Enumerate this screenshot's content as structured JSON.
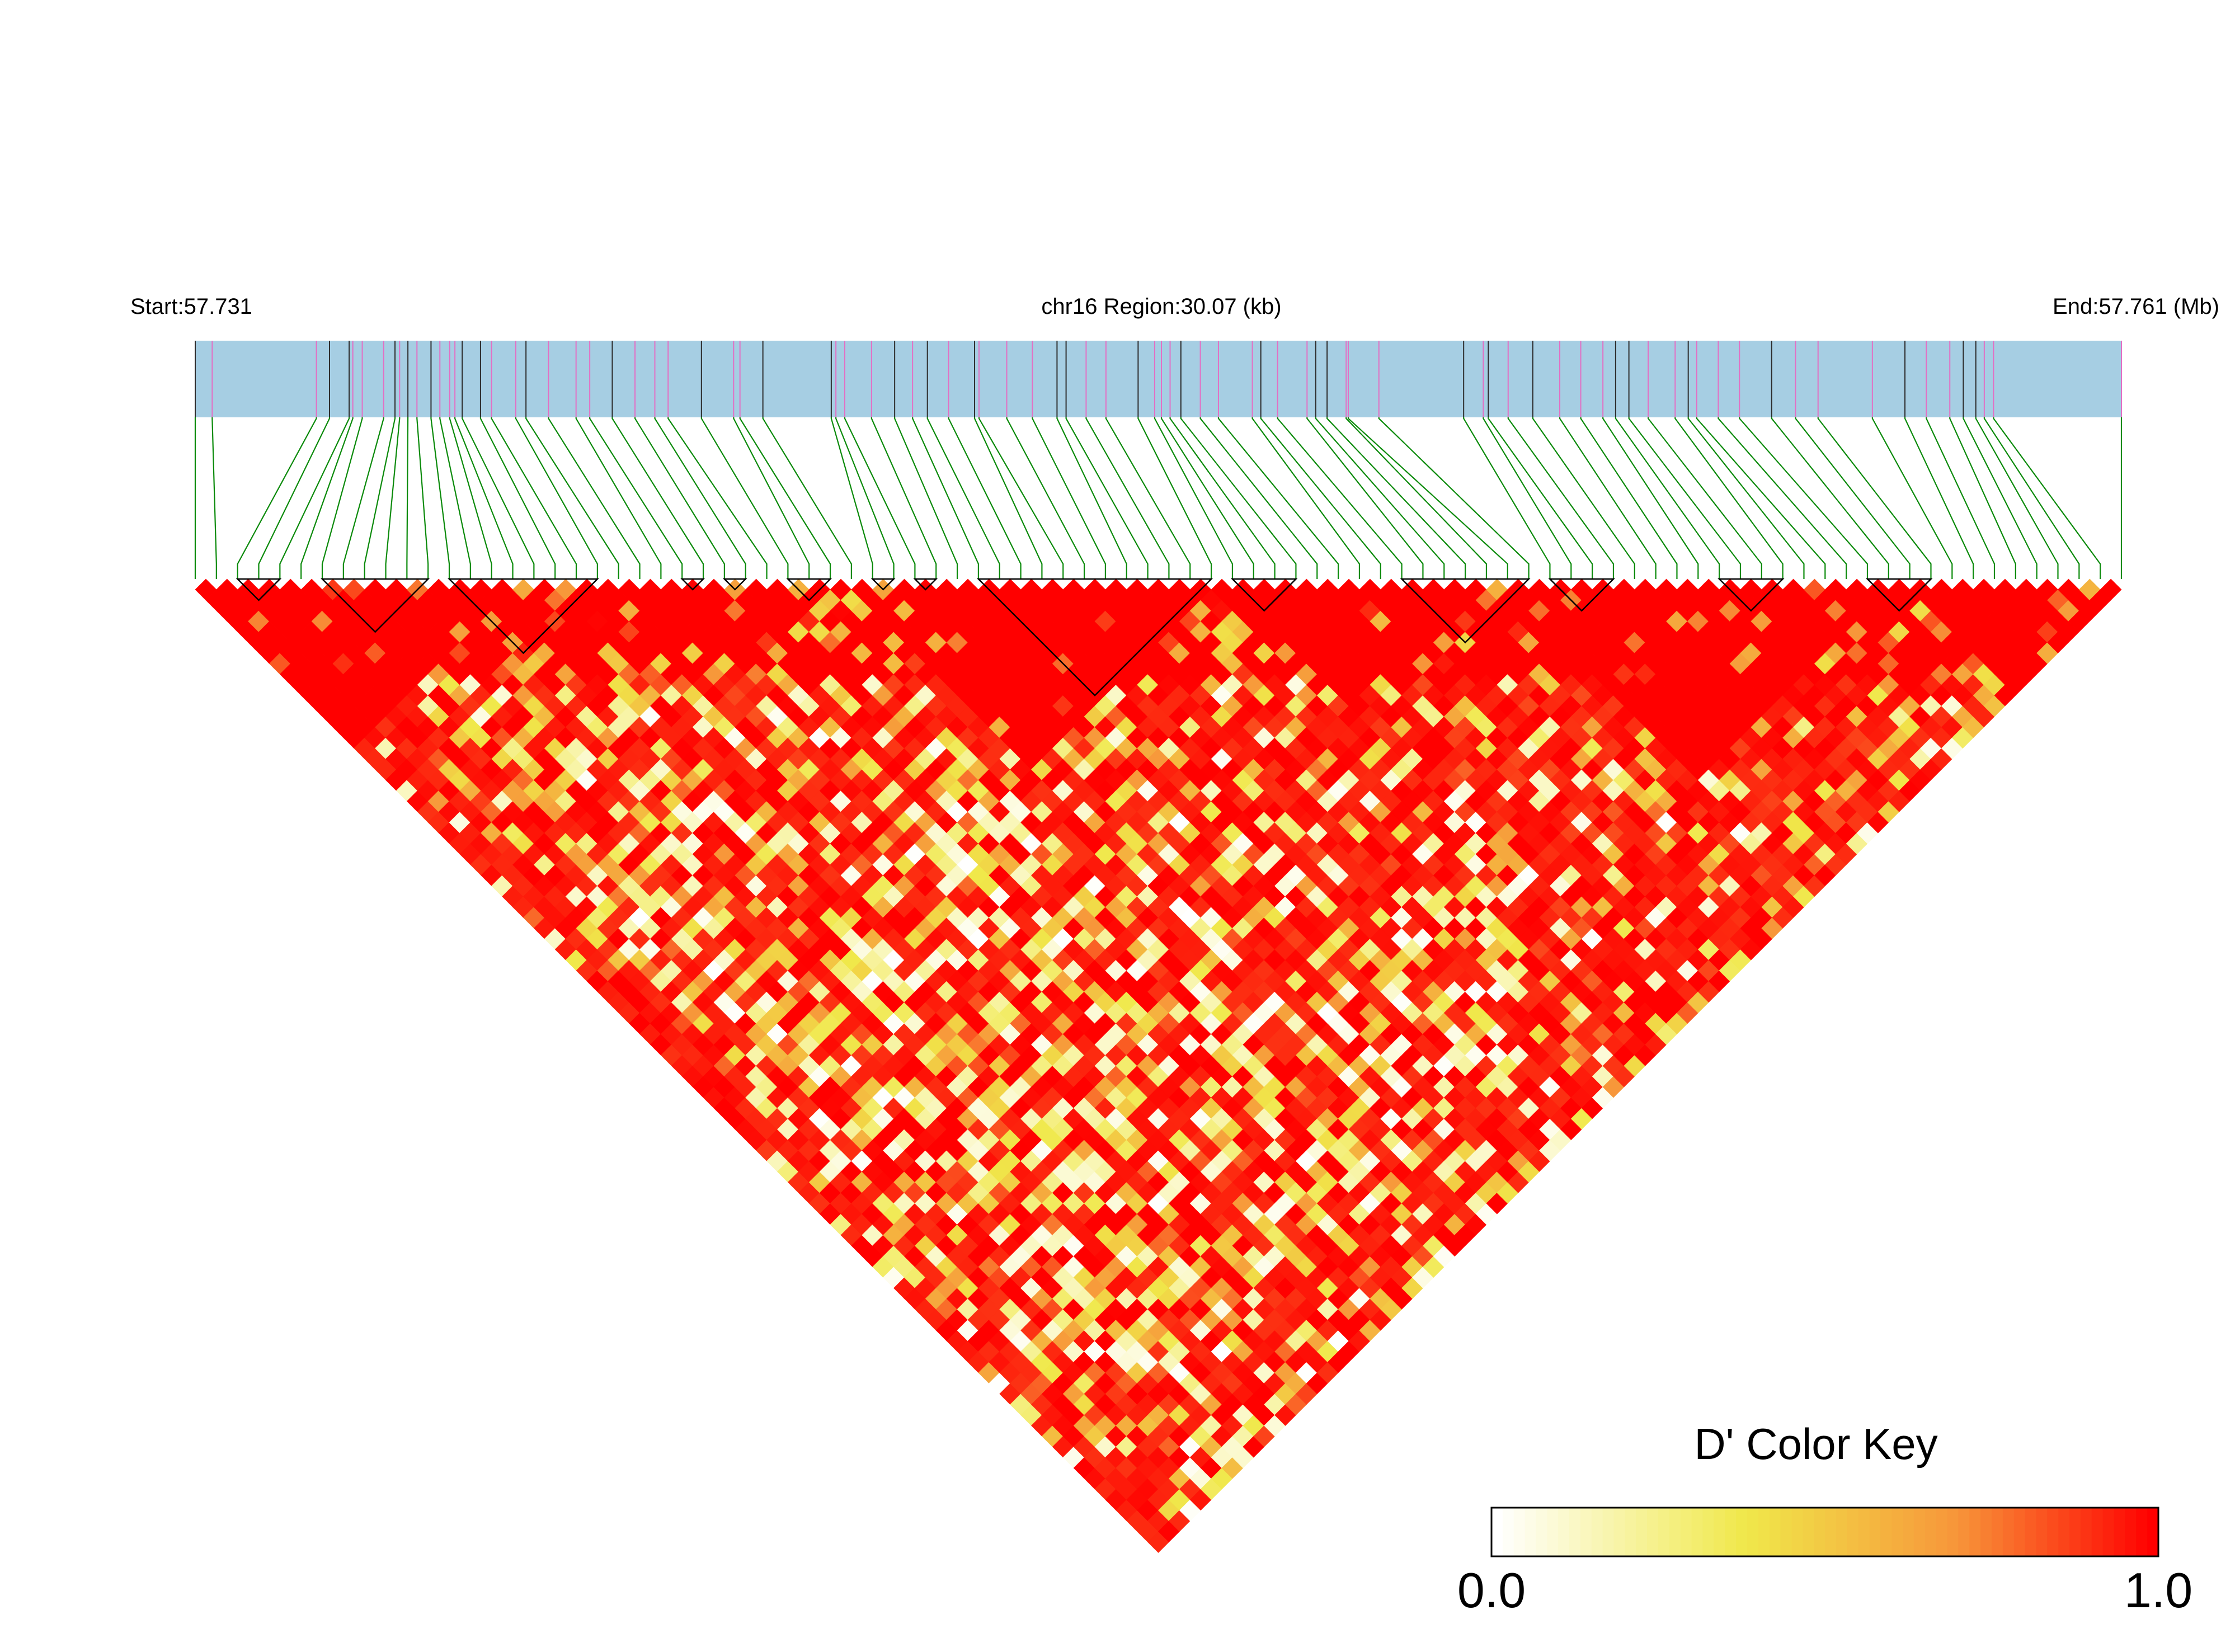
{
  "chart_data": {
    "type": "heatmap",
    "subtype": "LD triangle heatmap",
    "header": {
      "start_label": "Start:57.731",
      "region_label": "chr16 Region:30.07 (kb)",
      "end_label": "End:57.761 (Mb)"
    },
    "region": {
      "chromosome": "chr16",
      "start_mb": 57.731,
      "end_mb": 57.761,
      "length_kb": 30.07
    },
    "n_snps": 92,
    "snp_positions_fraction": [
      0,
      0.0088,
      0.0629,
      0.0697,
      0.0799,
      0.0818,
      0.0867,
      0.0978,
      0.1037,
      0.1061,
      0.1104,
      0.1151,
      0.1224,
      0.127,
      0.1321,
      0.1348,
      0.1386,
      0.1481,
      0.1538,
      0.1664,
      0.1717,
      0.1834,
      0.1977,
      0.2048,
      0.2165,
      0.2283,
      0.2386,
      0.2455,
      0.2628,
      0.2795,
      0.2828,
      0.2947,
      0.3302,
      0.3326,
      0.3372,
      0.3511,
      0.3631,
      0.3724,
      0.3801,
      0.3911,
      0.4046,
      0.4069,
      0.4213,
      0.4346,
      0.4474,
      0.4521,
      0.4625,
      0.4728,
      0.4895,
      0.4981,
      0.5016,
      0.5061,
      0.5117,
      0.5218,
      0.5312,
      0.5488,
      0.5532,
      0.5619,
      0.5772,
      0.5817,
      0.5876,
      0.5975,
      0.5986,
      0.6145,
      0.6585,
      0.6687,
      0.6713,
      0.6816,
      0.6944,
      0.7084,
      0.7193,
      0.7308,
      0.7374,
      0.7443,
      0.7543,
      0.7683,
      0.7751,
      0.7795,
      0.7907,
      0.8017,
      0.8184,
      0.8308,
      0.8425,
      0.8707,
      0.8876,
      0.8987,
      0.9109,
      0.9179,
      0.9244,
      0.9288,
      0.9336,
      1
    ],
    "snp_tick_colors": {
      "genotyped": "#2d2d2d",
      "other": "#e36fc4"
    },
    "haplotype_blocks": [
      [
        2,
        4
      ],
      [
        6,
        11
      ],
      [
        12,
        19
      ],
      [
        23,
        24
      ],
      [
        25,
        26
      ],
      [
        28,
        30
      ],
      [
        32,
        33
      ],
      [
        34,
        35
      ],
      [
        37,
        48
      ],
      [
        49,
        52
      ],
      [
        57,
        63
      ],
      [
        64,
        67
      ],
      [
        72,
        75
      ],
      [
        79,
        82
      ]
    ],
    "ld_pattern": {
      "high_ld_segments": [
        [
          0,
          15
        ],
        [
          22,
          30
        ],
        [
          31,
          48
        ],
        [
          46,
          60
        ],
        [
          62,
          80
        ],
        [
          78,
          91
        ]
      ],
      "note": "D' values in 0..1 for every SNP pair (i<j), rendered row by row from the top diagonal"
    },
    "colorscale": {
      "min": 0.0,
      "max": 1.0,
      "stops": [
        "#ffffff",
        "#f0e84a",
        "#f7a13a",
        "#ff0000"
      ]
    },
    "colorkey": {
      "title": "D' Color Key",
      "min_label": "0.0",
      "max_label": "1.0"
    }
  },
  "colors": {
    "track_bg": "#a6cee3",
    "connector": "#0a8a0a",
    "block_outline": "#000000"
  }
}
